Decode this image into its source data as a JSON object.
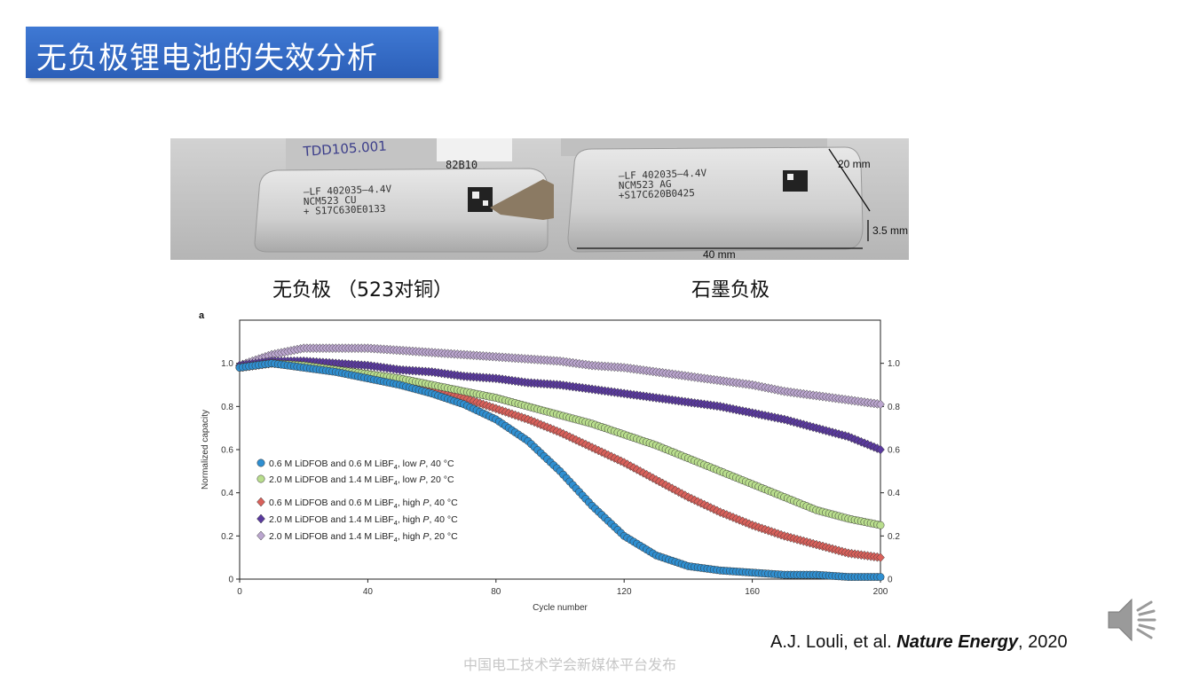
{
  "slide_title": "无负极锂电池的失效分析",
  "photo": {
    "label_width": "20 mm",
    "label_height": "3.5 mm",
    "label_length": "40 mm",
    "left_cell_text_1": "–LF 402035–4.4V",
    "left_cell_text_2": "NCM523    CU",
    "left_cell_text_3": "+ S17C630E0133",
    "right_cell_text_1": "–LF 402035–4.4V",
    "right_cell_text_2": "NCM523    AG",
    "right_cell_text_3": "+S17C620B0425",
    "left_top_tag": "TDD105.001",
    "left_top_code": "82B10"
  },
  "captions": {
    "left": "无负极 （523对铜）",
    "right": "石墨负极"
  },
  "citation": {
    "authors": "A.J. Louli, et al. ",
    "journal": "Nature Energy",
    "year": ", 2020"
  },
  "footer": "中国电工技术学会新媒体平台发布",
  "chart_data": {
    "type": "scatter",
    "panel_label": "a",
    "xlabel": "Cycle number",
    "ylabel": "Normalized capacity",
    "xlim": [
      0,
      200
    ],
    "ylim": [
      0,
      1.2
    ],
    "xticks": [
      "0",
      "40",
      "80",
      "120",
      "160",
      "200"
    ],
    "yticks": [
      "0",
      "0.2",
      "0.4",
      "0.6",
      "0.8",
      "1.0"
    ],
    "legend_position": "left",
    "x": [
      0,
      10,
      20,
      30,
      40,
      50,
      60,
      70,
      80,
      90,
      100,
      110,
      120,
      130,
      140,
      150,
      160,
      170,
      180,
      190,
      200
    ],
    "series": [
      {
        "name": "0.6 M LiDFOB and 0.6 M LiBF",
        "name_sub": "4",
        "name_tail": ", low ",
        "name_p": "P",
        "name_end": ", 40 °C",
        "marker": "circle",
        "color": "#2f8fd1",
        "values": [
          0.98,
          1.0,
          0.98,
          0.96,
          0.93,
          0.9,
          0.86,
          0.81,
          0.74,
          0.64,
          0.5,
          0.34,
          0.2,
          0.11,
          0.06,
          0.04,
          0.03,
          0.02,
          0.02,
          0.01,
          0.01
        ]
      },
      {
        "name": "2.0 M LiDFOB and 1.4 M LiBF",
        "name_sub": "4",
        "name_tail": ", low ",
        "name_p": "P",
        "name_end": ", 20 °C",
        "marker": "circle",
        "color": "#b9de8d",
        "values": [
          0.98,
          1.0,
          0.99,
          0.97,
          0.95,
          0.93,
          0.9,
          0.87,
          0.84,
          0.8,
          0.76,
          0.72,
          0.67,
          0.62,
          0.56,
          0.5,
          0.44,
          0.38,
          0.32,
          0.28,
          0.25
        ]
      },
      {
        "name": "0.6 M LiDFOB and 0.6 M LiBF",
        "name_sub": "4",
        "name_tail": ", high ",
        "name_p": "P",
        "name_end": ", 40 °C",
        "marker": "diamond",
        "color": "#d9615b",
        "values": [
          0.98,
          1.0,
          0.99,
          0.97,
          0.95,
          0.92,
          0.88,
          0.84,
          0.79,
          0.74,
          0.68,
          0.61,
          0.54,
          0.46,
          0.38,
          0.31,
          0.25,
          0.2,
          0.16,
          0.12,
          0.1
        ]
      },
      {
        "name": "2.0 M LiDFOB and 1.4 M LiBF",
        "name_sub": "4",
        "name_tail": ", high ",
        "name_p": "P",
        "name_end": ", 40 °C",
        "marker": "diamond",
        "color": "#5a3a9e",
        "values": [
          0.99,
          1.01,
          1.01,
          1.0,
          0.99,
          0.97,
          0.96,
          0.94,
          0.93,
          0.91,
          0.9,
          0.88,
          0.86,
          0.84,
          0.82,
          0.8,
          0.77,
          0.74,
          0.7,
          0.66,
          0.6
        ]
      },
      {
        "name": "2.0 M LiDFOB and 1.4 M LiBF",
        "name_sub": "4",
        "name_tail": ", high ",
        "name_p": "P",
        "name_end": ", 20 °C",
        "marker": "diamond",
        "color": "#bba6cf",
        "values": [
          0.99,
          1.04,
          1.07,
          1.07,
          1.07,
          1.06,
          1.05,
          1.04,
          1.03,
          1.02,
          1.01,
          0.99,
          0.98,
          0.96,
          0.94,
          0.92,
          0.9,
          0.87,
          0.85,
          0.83,
          0.81
        ]
      }
    ]
  },
  "icons": {
    "speaker": "speaker-icon"
  }
}
